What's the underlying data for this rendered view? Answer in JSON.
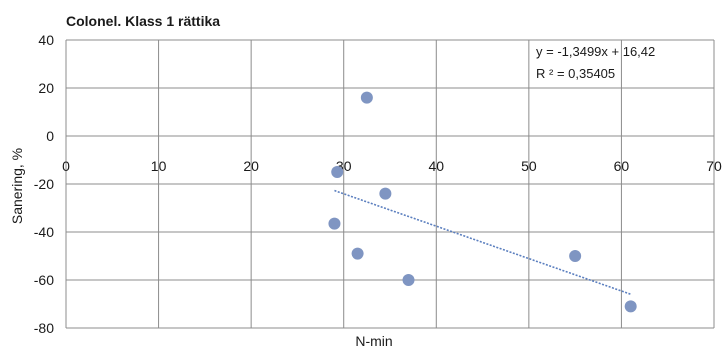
{
  "chart_data": {
    "type": "scatter",
    "title": "Colonel. Klass 1 rättika",
    "xlabel": "N-min",
    "ylabel": "Sanering, %",
    "xlim": [
      0,
      70
    ],
    "ylim": [
      -80,
      40
    ],
    "x_ticks": [
      "0",
      "10",
      "20",
      "30",
      "40",
      "50",
      "60",
      "70"
    ],
    "y_ticks": [
      "40",
      "20",
      "0",
      "-20",
      "-40",
      "-60",
      "-80"
    ],
    "grid": true,
    "point_color": "#7f95c2",
    "trendline_color": "#5b7fbf",
    "series": [
      {
        "x": [
          29,
          29.3,
          31.5,
          32.5,
          34.5,
          37,
          55,
          61
        ],
        "y": [
          -36.5,
          -15,
          -49,
          16,
          -24,
          -60,
          -50,
          -71
        ]
      }
    ],
    "trendline": {
      "slope": -1.3499,
      "intercept": 16.42,
      "x_range": [
        29,
        61
      ],
      "equation": "y = -1,3499x + 16,42",
      "r2": "R ² = 0,35405"
    }
  }
}
